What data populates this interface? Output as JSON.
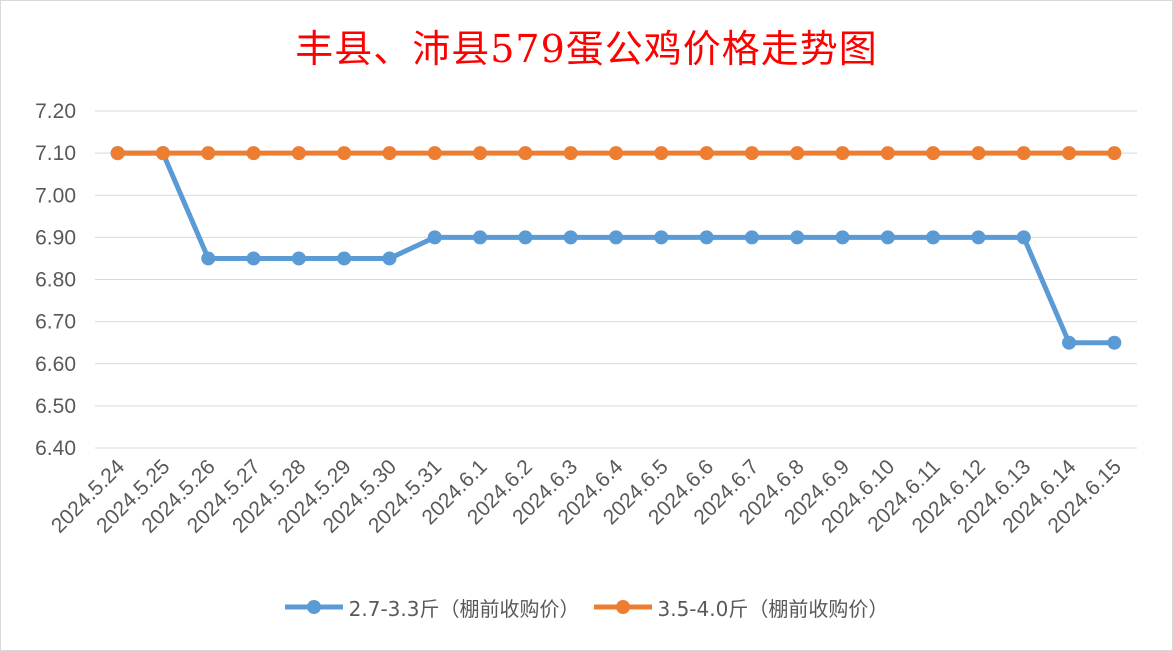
{
  "chart_data": {
    "type": "line",
    "title": "丰县、沛县579蛋公鸡价格走势图",
    "categories": [
      "2024.5.24",
      "2024.5.25",
      "2024.5.26",
      "2024.5.27",
      "2024.5.28",
      "2024.5.29",
      "2024.5.30",
      "2024.5.31",
      "2024.6.1",
      "2024.6.2",
      "2024.6.3",
      "2024.6.4",
      "2024.6.5",
      "2024.6.6",
      "2024.6.7",
      "2024.6.8",
      "2024.6.9",
      "2024.6.10",
      "2024.6.11",
      "2024.6.12",
      "2024.6.13",
      "2024.6.14",
      "2024.6.15"
    ],
    "series": [
      {
        "name": "2.7-3.3斤（棚前收购价）",
        "color": "#5b9bd5",
        "values": [
          7.1,
          7.1,
          6.85,
          6.85,
          6.85,
          6.85,
          6.85,
          6.9,
          6.9,
          6.9,
          6.9,
          6.9,
          6.9,
          6.9,
          6.9,
          6.9,
          6.9,
          6.9,
          6.9,
          6.9,
          6.9,
          6.65,
          6.65
        ]
      },
      {
        "name": "3.5-4.0斤（棚前收购价）",
        "color": "#ed7d31",
        "values": [
          7.1,
          7.1,
          7.1,
          7.1,
          7.1,
          7.1,
          7.1,
          7.1,
          7.1,
          7.1,
          7.1,
          7.1,
          7.1,
          7.1,
          7.1,
          7.1,
          7.1,
          7.1,
          7.1,
          7.1,
          7.1,
          7.1,
          7.1
        ]
      }
    ],
    "ylim": [
      6.4,
      7.2
    ],
    "yticks": [
      "6.40",
      "6.50",
      "6.60",
      "6.70",
      "6.80",
      "6.90",
      "7.00",
      "7.10",
      "7.20"
    ],
    "grid": true,
    "legend_position": "bottom"
  }
}
